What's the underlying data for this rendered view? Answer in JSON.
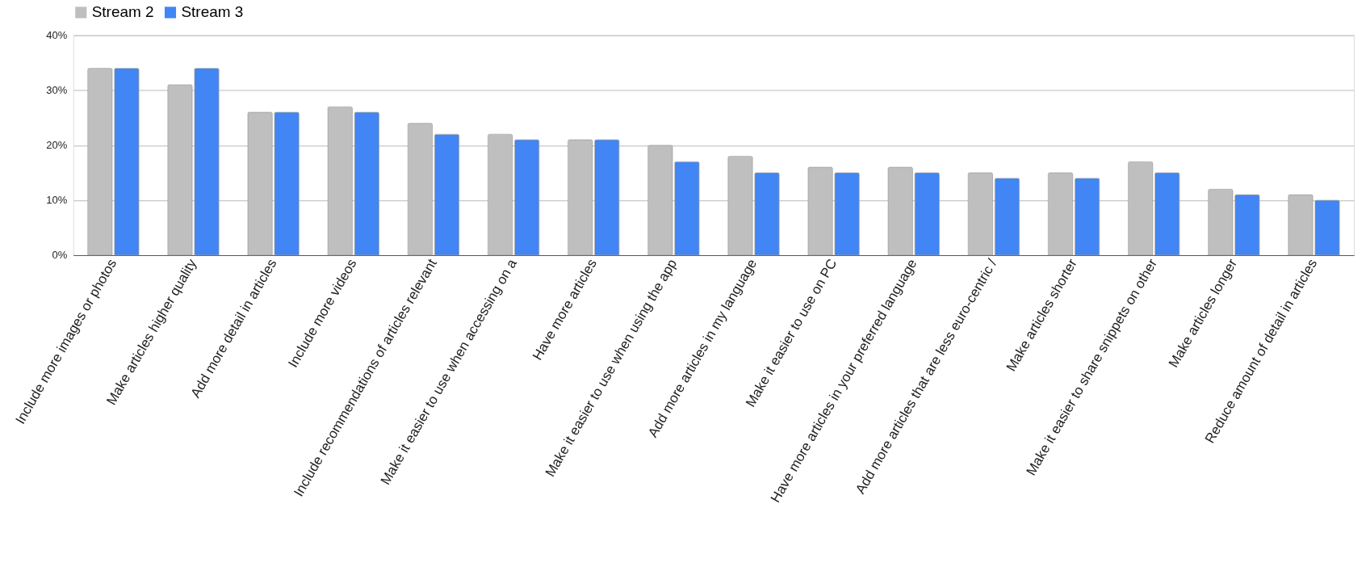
{
  "chart_data": {
    "type": "bar",
    "categories": [
      "Include more images or photos",
      "Make articles higher quality",
      "Add more detail in articles",
      "Include more videos",
      "Include recommendations of articles relevant",
      "Make it easier to use when accessing on a",
      "Have more articles",
      "Make it easier to use when using the app",
      "Add more articles in my language",
      "Make it easier to use on PC",
      "Have more articles in your preferred language",
      "Add more articles that are less euro-centric /",
      "Make articles shorter",
      "Make it easier to share snippets on other",
      "Make articles longer",
      "Reduce amount of detail in articles"
    ],
    "series": [
      {
        "name": "Stream 2",
        "color": "#bfbfbf",
        "values": [
          34,
          31,
          26,
          27,
          24,
          22,
          21,
          20,
          18,
          16,
          16,
          15,
          15,
          17,
          12,
          11
        ]
      },
      {
        "name": "Stream 3",
        "color": "#4285f4",
        "values": [
          34,
          34,
          26,
          26,
          22,
          21,
          21,
          17,
          15,
          15,
          15,
          14,
          14,
          15,
          11,
          10
        ]
      }
    ],
    "ylim": [
      0,
      40
    ],
    "yticks": [
      {
        "value": 0,
        "label": "0%"
      },
      {
        "value": 10,
        "label": "10%"
      },
      {
        "value": 20,
        "label": "20%"
      },
      {
        "value": 30,
        "label": "30%"
      },
      {
        "value": 40,
        "label": "40%"
      }
    ],
    "grid": "y",
    "legend": "top"
  }
}
